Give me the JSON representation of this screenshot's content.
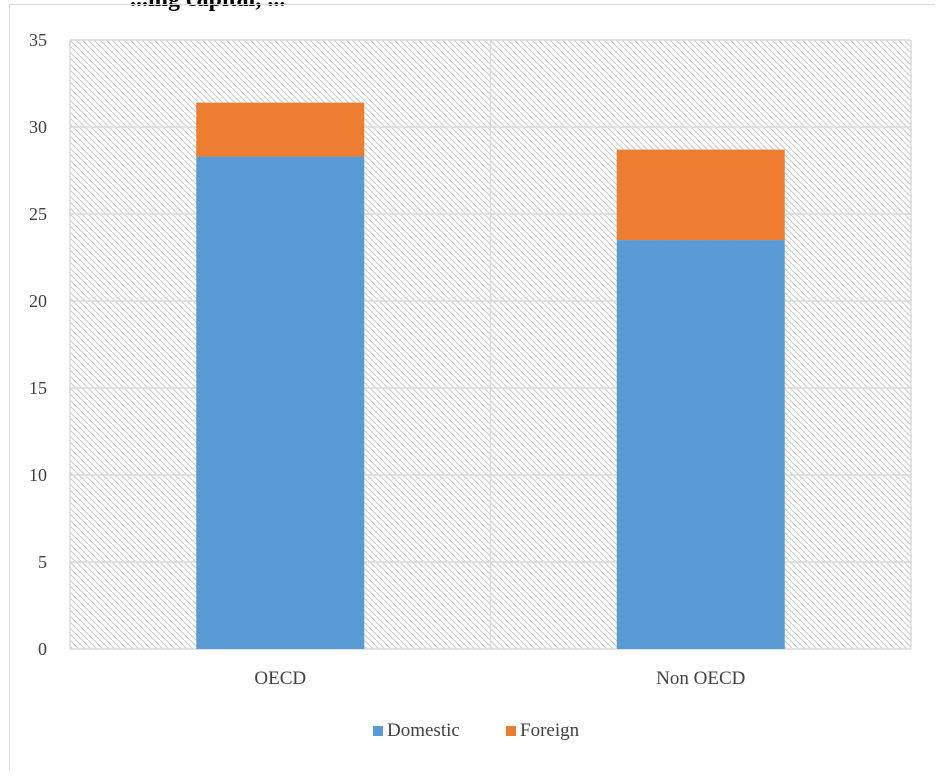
{
  "caption": "...ing capital, ...",
  "chart_data": {
    "type": "bar",
    "stacked": true,
    "categories": [
      "OECD",
      "Non OECD"
    ],
    "series": [
      {
        "name": "Domestic",
        "color": "#5b9bd5",
        "values": [
          28.3,
          23.5
        ]
      },
      {
        "name": "Foreign",
        "color": "#ed7d31",
        "values": [
          3.1,
          5.2
        ]
      }
    ],
    "ylim": [
      0,
      35
    ],
    "yticks": [
      0,
      5,
      10,
      15,
      20,
      25,
      30,
      35
    ],
    "grid": true,
    "legend_position": "bottom"
  }
}
